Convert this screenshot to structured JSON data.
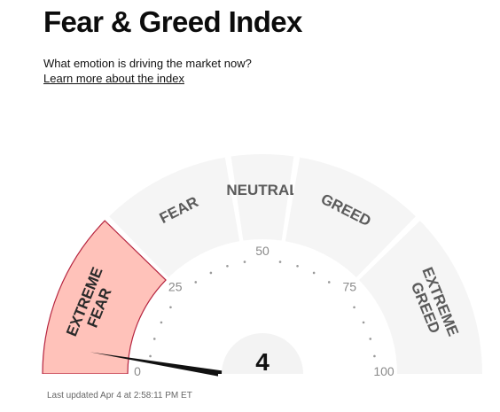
{
  "page": {
    "title": "Fear & Greed Index",
    "subtitle": "What emotion is driving the market now?",
    "learn_more": "Learn more about the index",
    "last_updated": "Last updated Apr 4 at 2:58:11 PM ET"
  },
  "gauge": {
    "value": 4,
    "value_label": "4",
    "min": 0,
    "max": 100,
    "active_segment": "extreme-fear",
    "segments": [
      {
        "key": "extreme-fear",
        "lines": [
          "EXTREME",
          "FEAR"
        ],
        "range": [
          0,
          25
        ],
        "active": true
      },
      {
        "key": "fear",
        "lines": [
          "FEAR"
        ],
        "range": [
          25,
          45
        ],
        "active": false
      },
      {
        "key": "neutral",
        "lines": [
          "NEUTRAL"
        ],
        "range": [
          45,
          55
        ],
        "active": false
      },
      {
        "key": "greed",
        "lines": [
          "GREED"
        ],
        "range": [
          55,
          75
        ],
        "active": false
      },
      {
        "key": "extreme-greed",
        "lines": [
          "EXTREME",
          "GREED"
        ],
        "range": [
          75,
          100
        ],
        "active": false
      }
    ],
    "ticks": [
      "0",
      "25",
      "50",
      "75",
      "100"
    ],
    "colors": {
      "segment_fill": "#f5f5f5",
      "active_fill": "#ffc2ba",
      "active_stroke": "#b6243f",
      "label": "#5b5b5b",
      "needle": "#111111"
    }
  }
}
